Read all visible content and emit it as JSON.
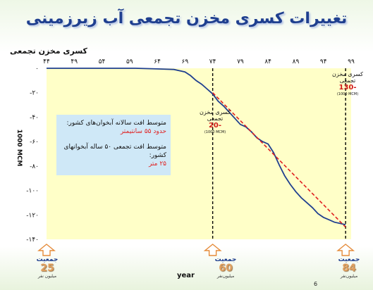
{
  "title": "تغییرات کسری مخزن تجمعی آب زیرزمینی",
  "colors": {
    "plot_bg": "#ffffc8",
    "series_actual": "#1f3f8f",
    "series_trend": "#e02020",
    "vline": "#000000",
    "title": "#1f3f8f"
  },
  "chart_data": {
    "type": "line",
    "title": "تغییرات کسری مخزن تجمعی آب زیرزمینی",
    "ylabel_top": "کسری مخزن تجمعی",
    "ylabel_side": "1000 MCM",
    "xlabel": "year",
    "x_tick_labels": [
      "۴۴",
      "۴۹",
      "۵۴",
      "۵۹",
      "۶۴",
      "۶۹",
      "۷۴",
      "۷۹",
      "۸۴",
      "۸۹",
      "۹۴",
      "۹۹"
    ],
    "x_ticks": [
      44,
      49,
      54,
      59,
      64,
      69,
      74,
      79,
      84,
      89,
      94,
      99
    ],
    "y_tick_labels": [
      "۰",
      "-۲۰",
      "-۴۰",
      "-۶۰",
      "-۸۰",
      "-۱۰۰",
      "-۱۲۰",
      "-۱۴۰"
    ],
    "y_ticks": [
      0,
      -20,
      -40,
      -60,
      -80,
      -100,
      -120,
      -140
    ],
    "xlim": [
      44,
      99
    ],
    "ylim": [
      -140,
      0
    ],
    "grid": false,
    "series": [
      {
        "x": [
          44,
          48,
          52,
          56,
          60,
          64,
          67,
          69,
          70,
          71,
          72,
          73,
          74,
          75,
          76,
          77,
          78,
          79,
          80,
          81,
          82,
          83,
          84,
          85,
          86,
          87,
          88,
          89,
          90,
          91,
          92,
          93,
          94,
          95,
          96,
          97,
          98
        ],
        "y": [
          0,
          0,
          0,
          0,
          0,
          -0.5,
          -1,
          -3,
          -6,
          -10,
          -13,
          -17,
          -21,
          -27,
          -31,
          -36,
          -41,
          -46,
          -48,
          -52,
          -57,
          -60,
          -62,
          -69,
          -79,
          -88,
          -95,
          -101,
          -106,
          -110,
          -114,
          -119,
          -122,
          -124,
          -126,
          -127,
          -128
        ]
      },
      {
        "x": [
          74,
          98
        ],
        "y": [
          -20,
          -130
        ],
        "style": "dashed"
      }
    ],
    "vlines": [
      74,
      98
    ]
  },
  "info_box": {
    "line1": "متوسط افت سالانه آبخوان‌های کشور:",
    "line1_value": "حدود ۵۵ سانتیمتر",
    "line2": "متوسط افت تجمعی ۵۰ ساله آبخوانهای کشور:",
    "line2_value": "۲۵ متر"
  },
  "annotations": [
    {
      "label": "کسری مخزن تجمعی",
      "value": "-20",
      "unit": "(1000 MCM)"
    },
    {
      "label": "کسری مخزن تجمعی",
      "value": "-130",
      "unit": "(1000 MCM)"
    }
  ],
  "population": [
    {
      "label": "جمعیت",
      "value": "25",
      "unit": "میلیون نفر"
    },
    {
      "label": "جمعیت",
      "value": "60",
      "unit": "میلیون‌نفر"
    },
    {
      "label": "جمعیت",
      "value": "84",
      "unit": "میلیون‌نفر"
    }
  ],
  "page_number": "6"
}
